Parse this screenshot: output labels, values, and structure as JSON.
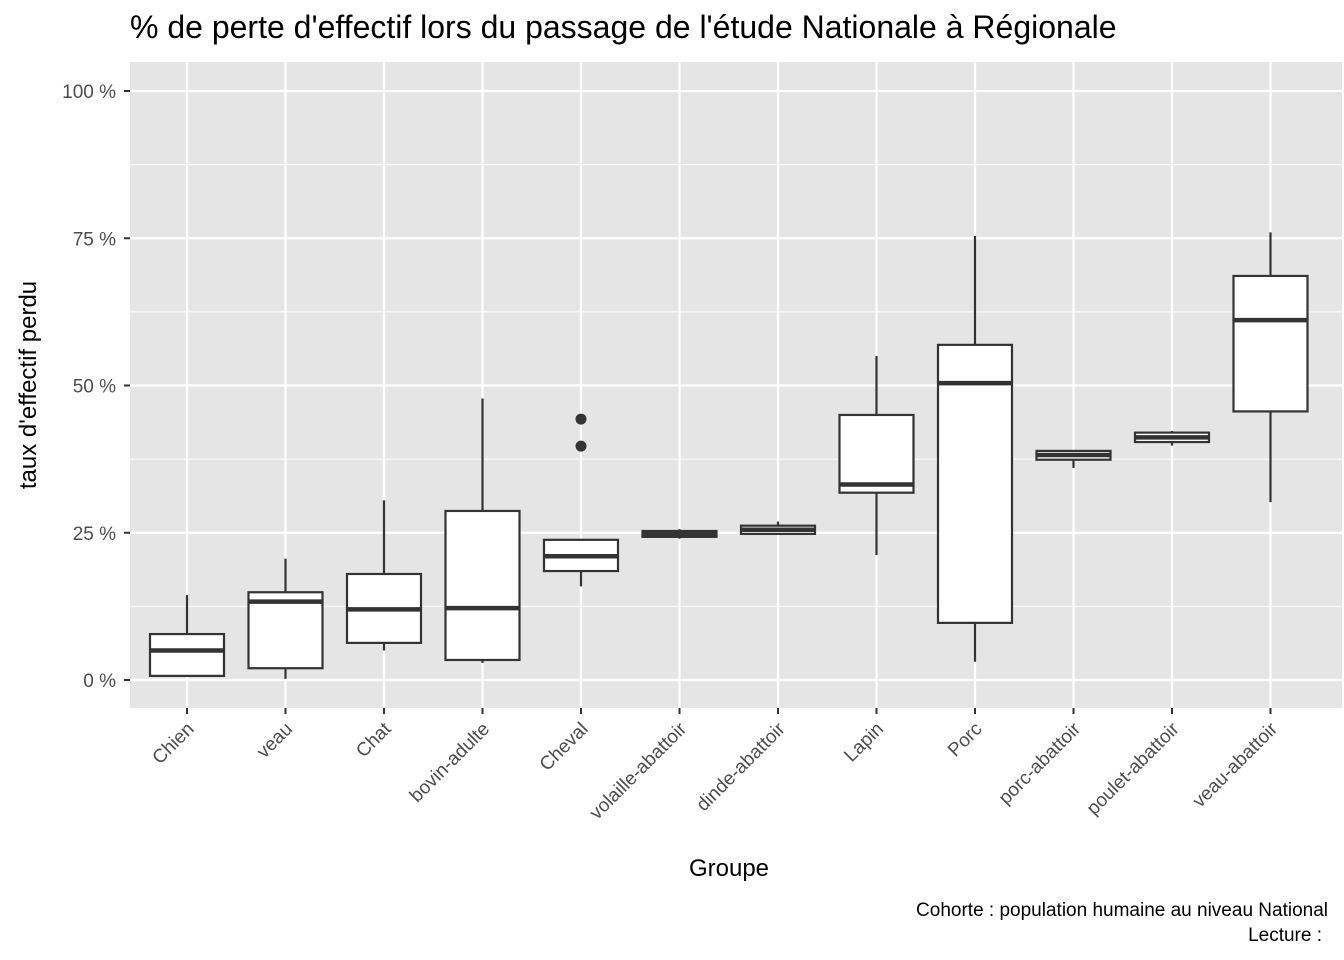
{
  "chart_data": {
    "type": "boxplot",
    "title": "% de perte d'effectif lors du passage de l'étude Nationale à Régionale",
    "xlabel": "Groupe",
    "ylabel": "taux d'effectif perdu",
    "caption_lines": [
      "Cohorte : population humaine au niveau National",
      "Lecture :"
    ],
    "ylim": [
      -4.5,
      104.5
    ],
    "yticks": [
      0,
      25,
      50,
      75,
      100
    ],
    "ytick_labels": [
      "0 %",
      "25 %",
      "50 %",
      "75 %",
      "100 %"
    ],
    "grid": true,
    "panel_color": "#e5e5e5",
    "grid_color": "#ffffff",
    "box_fill": "#ffffff",
    "box_stroke": "#333333",
    "categories": [
      "Chien",
      "veau",
      "Chat",
      "bovin-adulte",
      "Cheval",
      "volaille-abattoir",
      "dinde-abattoir",
      "Lapin",
      "Porc",
      "porc-abattoir",
      "poulet-abattoir",
      "veau-abattoir"
    ],
    "boxes": [
      {
        "category": "Chien",
        "whisker_low": 0.5,
        "q1": 0.7,
        "median": 5.0,
        "q3": 7.8,
        "whisker_high": 14.4,
        "outliers": []
      },
      {
        "category": "veau",
        "whisker_low": 0.2,
        "q1": 2.0,
        "median": 13.3,
        "q3": 14.9,
        "whisker_high": 20.6,
        "outliers": []
      },
      {
        "category": "Chat",
        "whisker_low": 5.0,
        "q1": 6.3,
        "median": 12.0,
        "q3": 18.0,
        "whisker_high": 30.5,
        "outliers": []
      },
      {
        "category": "bovin-adulte",
        "whisker_low": 2.9,
        "q1": 3.4,
        "median": 12.2,
        "q3": 28.7,
        "whisker_high": 47.8,
        "outliers": []
      },
      {
        "category": "Cheval",
        "whisker_low": 15.9,
        "q1": 18.5,
        "median": 21.0,
        "q3": 23.8,
        "whisker_high": 23.8,
        "outliers": [
          44.3,
          39.7
        ]
      },
      {
        "category": "volaille-abattoir",
        "whisker_low": 24.0,
        "q1": 24.3,
        "median": 24.8,
        "q3": 25.3,
        "whisker_high": 25.6,
        "outliers": []
      },
      {
        "category": "dinde-abattoir",
        "whisker_low": 24.7,
        "q1": 24.8,
        "median": 25.5,
        "q3": 26.2,
        "whisker_high": 26.9,
        "outliers": []
      },
      {
        "category": "Lapin",
        "whisker_low": 21.2,
        "q1": 31.8,
        "median": 33.2,
        "q3": 45.0,
        "whisker_high": 55.0,
        "outliers": []
      },
      {
        "category": "Porc",
        "whisker_low": 3.1,
        "q1": 9.7,
        "median": 50.4,
        "q3": 56.9,
        "whisker_high": 75.4,
        "outliers": []
      },
      {
        "category": "porc-abattoir",
        "whisker_low": 36.0,
        "q1": 37.4,
        "median": 38.2,
        "q3": 38.9,
        "whisker_high": 38.9,
        "outliers": []
      },
      {
        "category": "poulet-abattoir",
        "whisker_low": 39.8,
        "q1": 40.4,
        "median": 41.2,
        "q3": 42.0,
        "whisker_high": 42.3,
        "outliers": []
      },
      {
        "category": "veau-abattoir",
        "whisker_low": 30.2,
        "q1": 45.6,
        "median": 61.1,
        "q3": 68.6,
        "whisker_high": 76.0,
        "outliers": []
      }
    ]
  }
}
